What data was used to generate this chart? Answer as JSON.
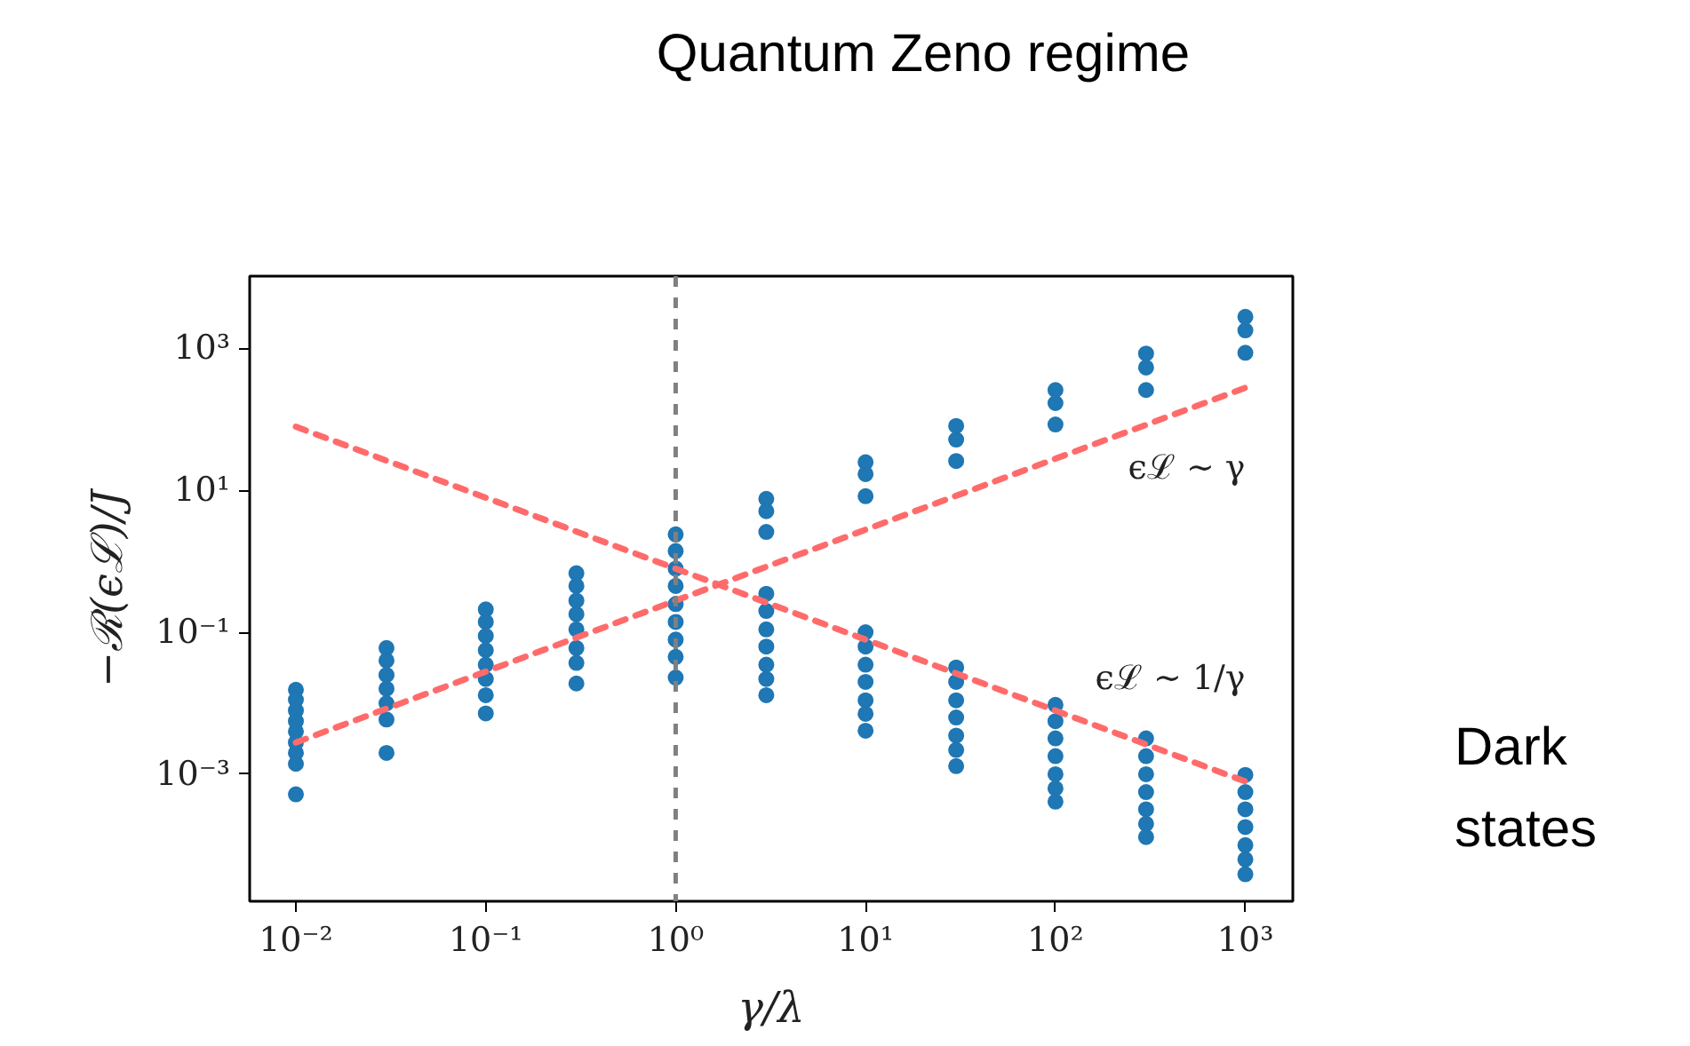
{
  "chart_data": {
    "type": "scatter",
    "xlabel": "γ/λ",
    "ylabel": "−ℛ(ϵℒ)/J",
    "log": "xy",
    "grid": false,
    "xlim": [
      0.00571,
      1778
    ],
    "ylim": [
      1.62e-05,
      10470
    ],
    "xticks": [
      {
        "value": 0.01,
        "label": "10⁻²"
      },
      {
        "value": 0.1,
        "label": "10⁻¹"
      },
      {
        "value": 1,
        "label": "10⁰"
      },
      {
        "value": 10,
        "label": "10¹"
      },
      {
        "value": 100,
        "label": "10²"
      },
      {
        "value": 1000,
        "label": "10³"
      }
    ],
    "yticks": [
      {
        "value": 0.001,
        "label": "10⁻³"
      },
      {
        "value": 0.1,
        "label": "10⁻¹"
      },
      {
        "value": 10,
        "label": "10¹"
      },
      {
        "value": 1000,
        "label": "10³"
      }
    ],
    "ref_lines": [
      {
        "axis": "x",
        "value": 1,
        "color": "#808080",
        "line_style": "dashed"
      }
    ],
    "annotations": [
      "Quantum Zeno regime",
      "Dark\nstates"
    ],
    "series": [
      {
        "color": "#1f77b4",
        "marker": "circle",
        "x": [
          0.01,
          0.01,
          0.01,
          0.01,
          0.01,
          0.01,
          0.01,
          0.01,
          0.01,
          0.03,
          0.03,
          0.03,
          0.03,
          0.03,
          0.03,
          0.03,
          0.1,
          0.1,
          0.1,
          0.1,
          0.1,
          0.1,
          0.1,
          0.1,
          0.3,
          0.3,
          0.3,
          0.3,
          0.3,
          0.3,
          0.3,
          0.3,
          1,
          1,
          1,
          1,
          1,
          1,
          1,
          1,
          1,
          3,
          3,
          3,
          3,
          3,
          3,
          3,
          3,
          3,
          3,
          10,
          10,
          10,
          10,
          10,
          10,
          10,
          10,
          10,
          10,
          30,
          30,
          30,
          30,
          30,
          30,
          30,
          30,
          30,
          30,
          100,
          100,
          100,
          100,
          100,
          100,
          100,
          100,
          100,
          100,
          300,
          300,
          300,
          300,
          300,
          300,
          300,
          300,
          300,
          300,
          1000,
          1000,
          1000,
          1000,
          1000,
          1000,
          1000,
          1000,
          1000,
          1000
        ],
        "values": [
          0.0155,
          0.0112,
          0.0079,
          0.0056,
          0.004,
          0.0028,
          0.002,
          0.0014,
          0.00052,
          0.06,
          0.04,
          0.025,
          0.016,
          0.01,
          0.0059,
          0.002,
          0.21,
          0.14,
          0.089,
          0.056,
          0.035,
          0.022,
          0.013,
          0.0072,
          0.68,
          0.45,
          0.28,
          0.18,
          0.11,
          0.06,
          0.037,
          0.019,
          2.4,
          1.4,
          0.79,
          0.45,
          0.25,
          0.14,
          0.079,
          0.045,
          0.023,
          7.6,
          5.1,
          2.6,
          0.35,
          0.2,
          0.11,
          0.063,
          0.035,
          0.022,
          0.013,
          25,
          17,
          8.3,
          0.1,
          0.063,
          0.035,
          0.02,
          0.011,
          0.0071,
          0.0041,
          81,
          52,
          26,
          0.032,
          0.02,
          0.011,
          0.0063,
          0.0035,
          0.0022,
          0.0013,
          260,
          170,
          85,
          0.0095,
          0.0056,
          0.0032,
          0.0018,
          0.001,
          0.00063,
          0.00041,
          850,
          540,
          260,
          0.0032,
          0.0018,
          0.001,
          0.00056,
          0.00032,
          0.0002,
          0.00013,
          2800,
          1800,
          870,
          0.00098,
          0.00056,
          0.00032,
          0.00018,
          0.0001,
          6.3e-05,
          3.9e-05
        ]
      },
      {
        "type": "line",
        "name": "ϵℒ ∼ γ",
        "color": "#ff6b6b",
        "line_style": "dashed",
        "x": [
          0.01,
          1000
        ],
        "values": [
          0.0028,
          280
        ]
      },
      {
        "type": "line",
        "name": "ϵℒ ∼ 1/γ",
        "color": "#ff6b6b",
        "line_style": "dashed",
        "x": [
          0.01,
          1000
        ],
        "values": [
          79,
          0.00079
        ]
      }
    ]
  }
}
